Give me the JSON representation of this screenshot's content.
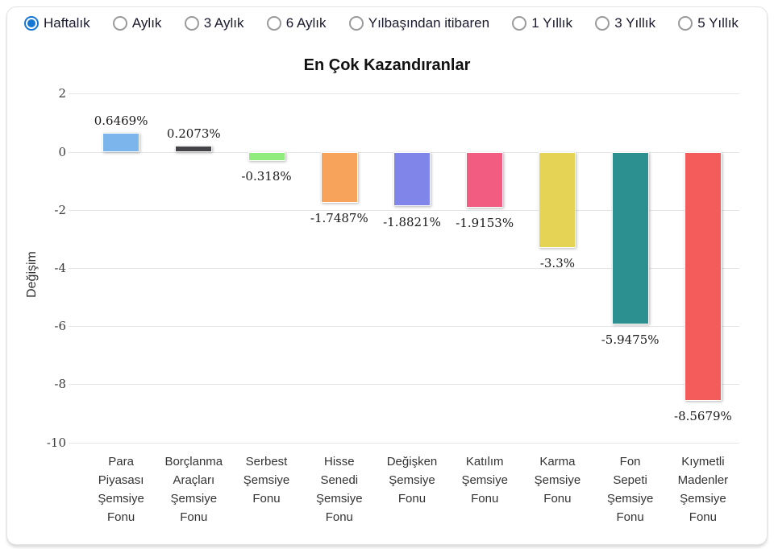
{
  "period_selector": {
    "accent_color": "#1577d5",
    "options": [
      {
        "label": "Haftalık",
        "selected": true
      },
      {
        "label": "Aylık",
        "selected": false
      },
      {
        "label": "3 Aylık",
        "selected": false
      },
      {
        "label": "6 Aylık",
        "selected": false
      },
      {
        "label": "Yılbaşından itibaren",
        "selected": false
      },
      {
        "label": "1 Yıllık",
        "selected": false
      },
      {
        "label": "3 Yıllık",
        "selected": false
      },
      {
        "label": "5 Yıllık",
        "selected": false
      }
    ]
  },
  "chart_data": {
    "type": "bar",
    "title": "En Çok Kazandıranlar",
    "xlabel": "",
    "ylabel": "Değişim",
    "ylim": [
      -10,
      2
    ],
    "yticks": [
      2,
      0,
      -2,
      -4,
      -6,
      -8,
      -10
    ],
    "grid": true,
    "legend": false,
    "categories": [
      "Para Piyasası Şemsiye Fonu",
      "Borçlanma Araçları Şemsiye Fonu",
      "Serbest Şemsiye Fonu",
      "Hisse Senedi Şemsiye Fonu",
      "Değişken Şemsiye Fonu",
      "Katılım Şemsiye Fonu",
      "Karma Şemsiye Fonu",
      "Fon Sepeti Şemsiye Fonu",
      "Kıymetli Madenler Şemsiye Fonu"
    ],
    "values": [
      0.6469,
      0.2073,
      -0.318,
      -1.7487,
      -1.8821,
      -1.9153,
      -3.3,
      -5.9475,
      -8.5679
    ],
    "value_labels": [
      "0.6469%",
      "0.2073%",
      "-0.318%",
      "-1.7487%",
      "-1.8821%",
      "-1.9153%",
      "-3.3%",
      "-5.9475%",
      "-8.5679%"
    ],
    "bar_colors": [
      "#7cb5ec",
      "#434348",
      "#90ed7d",
      "#f7a35c",
      "#8085e9",
      "#f15c80",
      "#e4d354",
      "#2b908f",
      "#f45b5b"
    ],
    "gridline_color": "#e6e6e6"
  }
}
